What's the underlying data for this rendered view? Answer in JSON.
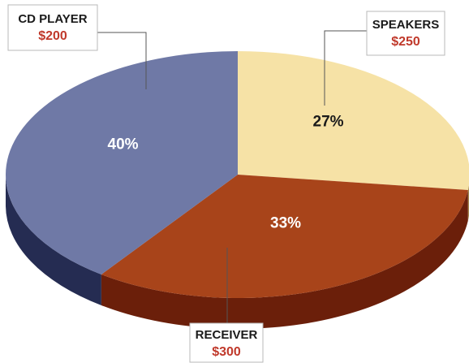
{
  "chart_data": {
    "type": "pie3d",
    "categories": [
      "CD PLAYER",
      "SPEAKERS",
      "RECEIVER"
    ],
    "values": [
      27,
      33,
      40
    ],
    "value_labels": [
      "27%",
      "33%",
      "40%"
    ],
    "prices": [
      "$200",
      "$250",
      "$300"
    ],
    "colors": [
      "#f6e2a6",
      "#a8441a",
      "#6f79a6"
    ],
    "side_colors": [
      "#a88a50",
      "#6b1f0a",
      "#252c52"
    ],
    "label_colors": [
      "#1a1a1a",
      "#ffffff",
      "#ffffff"
    ]
  }
}
